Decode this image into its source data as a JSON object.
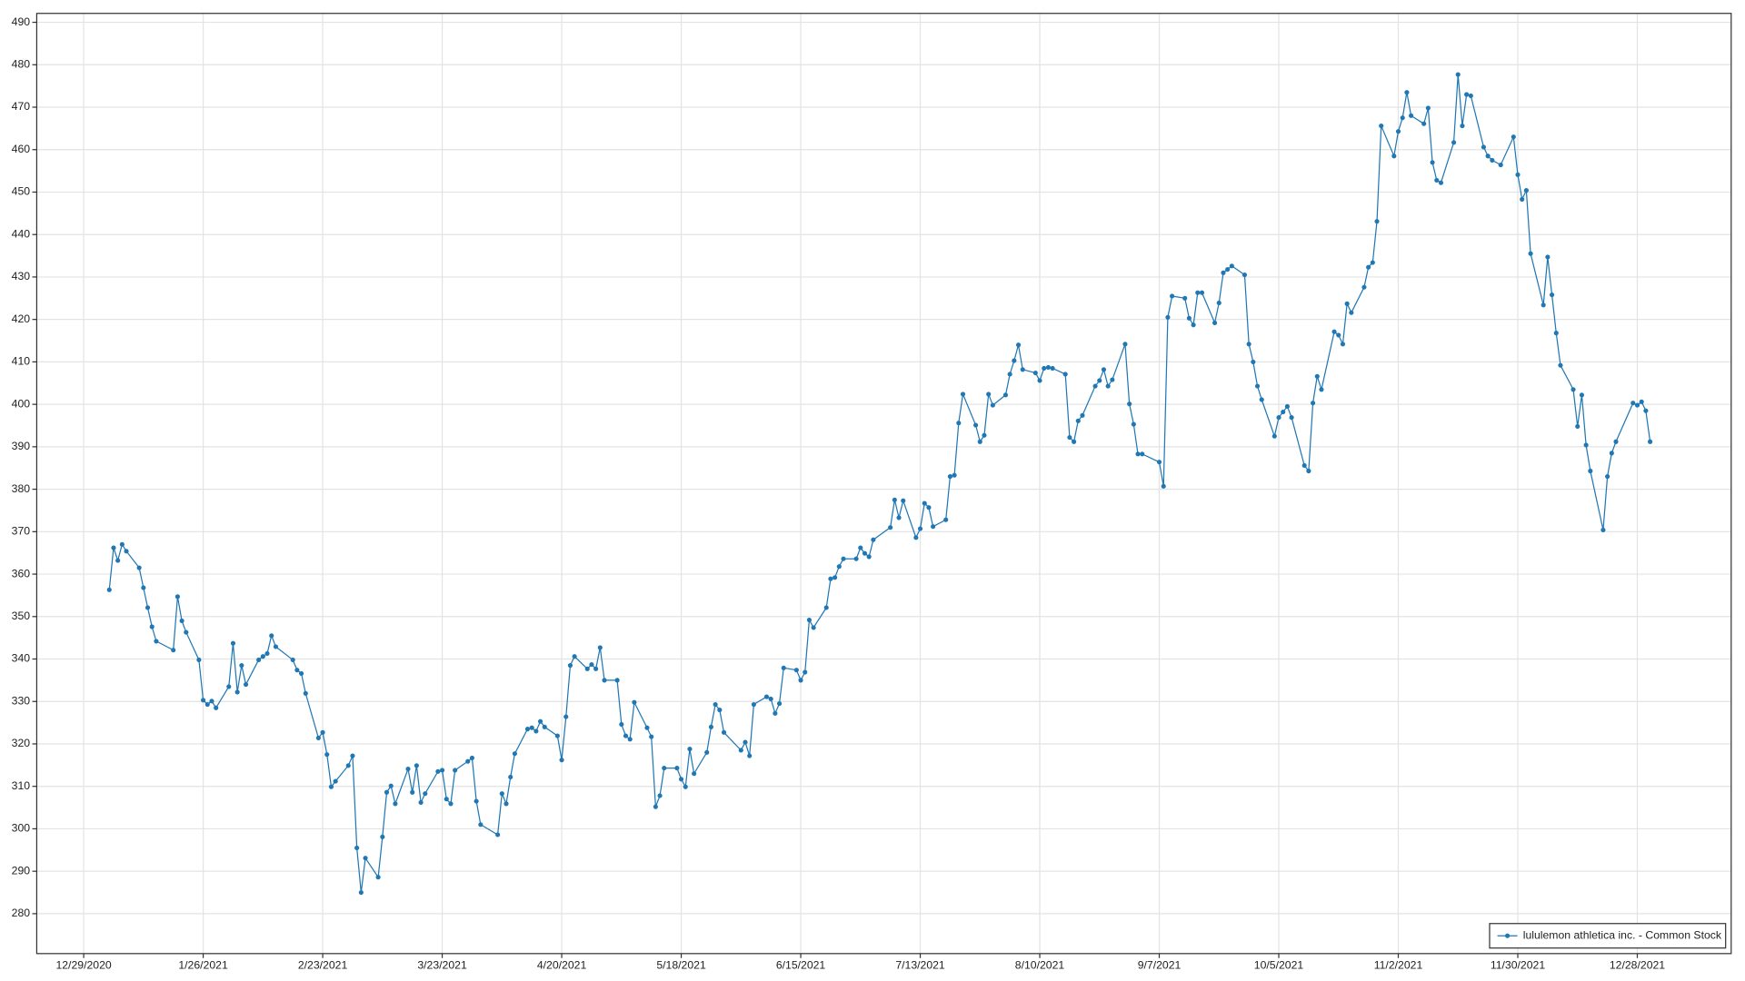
{
  "chart_data": {
    "type": "line",
    "x": [
      "2021-01-04",
      "2021-01-05",
      "2021-01-06",
      "2021-01-07",
      "2021-01-08",
      "2021-01-11",
      "2021-01-12",
      "2021-01-13",
      "2021-01-14",
      "2021-01-15",
      "2021-01-19",
      "2021-01-20",
      "2021-01-21",
      "2021-01-22",
      "2021-01-25",
      "2021-01-26",
      "2021-01-27",
      "2021-01-28",
      "2021-01-29",
      "2021-02-01",
      "2021-02-02",
      "2021-02-03",
      "2021-02-04",
      "2021-02-05",
      "2021-02-08",
      "2021-02-09",
      "2021-02-10",
      "2021-02-11",
      "2021-02-12",
      "2021-02-16",
      "2021-02-17",
      "2021-02-18",
      "2021-02-19",
      "2021-02-22",
      "2021-02-23",
      "2021-02-24",
      "2021-02-25",
      "2021-02-26",
      "2021-03-01",
      "2021-03-02",
      "2021-03-03",
      "2021-03-04",
      "2021-03-05",
      "2021-03-08",
      "2021-03-09",
      "2021-03-10",
      "2021-03-11",
      "2021-03-12",
      "2021-03-15",
      "2021-03-16",
      "2021-03-17",
      "2021-03-18",
      "2021-03-19",
      "2021-03-22",
      "2021-03-23",
      "2021-03-24",
      "2021-03-25",
      "2021-03-26",
      "2021-03-29",
      "2021-03-30",
      "2021-03-31",
      "2021-04-01",
      "2021-04-05",
      "2021-04-06",
      "2021-04-07",
      "2021-04-08",
      "2021-04-09",
      "2021-04-12",
      "2021-04-13",
      "2021-04-14",
      "2021-04-15",
      "2021-04-16",
      "2021-04-19",
      "2021-04-20",
      "2021-04-21",
      "2021-04-22",
      "2021-04-23",
      "2021-04-26",
      "2021-04-27",
      "2021-04-28",
      "2021-04-29",
      "2021-04-30",
      "2021-05-03",
      "2021-05-04",
      "2021-05-05",
      "2021-05-06",
      "2021-05-07",
      "2021-05-10",
      "2021-05-11",
      "2021-05-12",
      "2021-05-13",
      "2021-05-14",
      "2021-05-17",
      "2021-05-18",
      "2021-05-19",
      "2021-05-20",
      "2021-05-21",
      "2021-05-24",
      "2021-05-25",
      "2021-05-26",
      "2021-05-27",
      "2021-05-28",
      "2021-06-01",
      "2021-06-02",
      "2021-06-03",
      "2021-06-04",
      "2021-06-07",
      "2021-06-08",
      "2021-06-09",
      "2021-06-10",
      "2021-06-11",
      "2021-06-14",
      "2021-06-15",
      "2021-06-16",
      "2021-06-17",
      "2021-06-18",
      "2021-06-21",
      "2021-06-22",
      "2021-06-23",
      "2021-06-24",
      "2021-06-25",
      "2021-06-28",
      "2021-06-29",
      "2021-06-30",
      "2021-07-01",
      "2021-07-02",
      "2021-07-06",
      "2021-07-07",
      "2021-07-08",
      "2021-07-09",
      "2021-07-12",
      "2021-07-13",
      "2021-07-14",
      "2021-07-15",
      "2021-07-16",
      "2021-07-19",
      "2021-07-20",
      "2021-07-21",
      "2021-07-22",
      "2021-07-23",
      "2021-07-26",
      "2021-07-27",
      "2021-07-28",
      "2021-07-29",
      "2021-07-30",
      "2021-08-02",
      "2021-08-03",
      "2021-08-04",
      "2021-08-05",
      "2021-08-06",
      "2021-08-09",
      "2021-08-10",
      "2021-08-11",
      "2021-08-12",
      "2021-08-13",
      "2021-08-16",
      "2021-08-17",
      "2021-08-18",
      "2021-08-19",
      "2021-08-20",
      "2021-08-23",
      "2021-08-24",
      "2021-08-25",
      "2021-08-26",
      "2021-08-27",
      "2021-08-30",
      "2021-08-31",
      "2021-09-01",
      "2021-09-02",
      "2021-09-03",
      "2021-09-07",
      "2021-09-08",
      "2021-09-09",
      "2021-09-10",
      "2021-09-13",
      "2021-09-14",
      "2021-09-15",
      "2021-09-16",
      "2021-09-17",
      "2021-09-20",
      "2021-09-21",
      "2021-09-22",
      "2021-09-23",
      "2021-09-24",
      "2021-09-27",
      "2021-09-28",
      "2021-09-29",
      "2021-09-30",
      "2021-10-01",
      "2021-10-04",
      "2021-10-05",
      "2021-10-06",
      "2021-10-07",
      "2021-10-08",
      "2021-10-11",
      "2021-10-12",
      "2021-10-13",
      "2021-10-14",
      "2021-10-15",
      "2021-10-18",
      "2021-10-19",
      "2021-10-20",
      "2021-10-21",
      "2021-10-22",
      "2021-10-25",
      "2021-10-26",
      "2021-10-27",
      "2021-10-28",
      "2021-10-29",
      "2021-11-01",
      "2021-11-02",
      "2021-11-03",
      "2021-11-04",
      "2021-11-05",
      "2021-11-08",
      "2021-11-09",
      "2021-11-10",
      "2021-11-11",
      "2021-11-12",
      "2021-11-15",
      "2021-11-16",
      "2021-11-17",
      "2021-11-18",
      "2021-11-19",
      "2021-11-22",
      "2021-11-23",
      "2021-11-24",
      "2021-11-26",
      "2021-11-29",
      "2021-11-30",
      "2021-12-01",
      "2021-12-02",
      "2021-12-03",
      "2021-12-06",
      "2021-12-07",
      "2021-12-08",
      "2021-12-09",
      "2021-12-10",
      "2021-12-13",
      "2021-12-14",
      "2021-12-15",
      "2021-12-16",
      "2021-12-17",
      "2021-12-20",
      "2021-12-21",
      "2021-12-22",
      "2021-12-23",
      "2021-12-27",
      "2021-12-28",
      "2021-12-29",
      "2021-12-30",
      "2021-12-31"
    ],
    "series": [
      {
        "name": "lululemon athletica inc. - Common Stock",
        "color": "#1f77b4",
        "values": [
          356.3,
          366.2,
          363.2,
          367.0,
          365.4,
          361.5,
          356.8,
          352.1,
          347.6,
          344.2,
          342.1,
          354.7,
          349.0,
          346.3,
          339.8,
          330.3,
          329.3,
          330.1,
          328.5,
          333.5,
          343.7,
          332.2,
          338.5,
          334.0,
          339.8,
          340.6,
          341.3,
          345.5,
          342.9,
          339.8,
          337.4,
          336.6,
          331.9,
          321.4,
          322.7,
          317.5,
          309.9,
          311.2,
          314.9,
          317.2,
          295.5,
          285.0,
          293.1,
          288.6,
          298.1,
          308.6,
          310.1,
          305.9,
          314.1,
          308.6,
          314.9,
          306.2,
          308.3,
          313.5,
          313.8,
          307.0,
          305.9,
          313.8,
          315.9,
          316.7,
          306.5,
          301.0,
          298.6,
          308.3,
          305.9,
          312.2,
          317.7,
          323.5,
          323.8,
          323.0,
          325.3,
          324.0,
          321.9,
          316.2,
          326.4,
          338.5,
          340.6,
          337.7,
          338.7,
          337.7,
          342.7,
          335.0,
          335.0,
          324.6,
          321.9,
          321.1,
          329.8,
          323.8,
          321.7,
          305.2,
          307.8,
          314.3,
          314.3,
          311.7,
          309.9,
          318.8,
          313.0,
          318.0,
          324.0,
          329.3,
          328.0,
          322.7,
          318.5,
          320.4,
          317.2,
          329.3,
          331.1,
          330.6,
          327.2,
          329.5,
          337.9,
          337.4,
          335.0,
          336.9,
          349.2,
          347.4,
          352.1,
          358.9,
          359.2,
          361.8,
          363.6,
          363.6,
          366.2,
          364.9,
          364.1,
          368.1,
          371.0,
          377.5,
          373.3,
          377.3,
          368.6,
          370.7,
          376.7,
          375.7,
          371.2,
          372.8,
          383.0,
          383.3,
          395.6,
          402.4,
          395.1,
          391.2,
          392.7,
          402.4,
          399.8,
          402.2,
          407.1,
          410.3,
          414.0,
          408.2,
          407.4,
          405.6,
          408.5,
          408.7,
          408.5,
          407.1,
          392.2,
          391.2,
          396.1,
          397.4,
          404.3,
          405.6,
          408.2,
          404.3,
          405.8,
          414.2,
          400.1,
          395.3,
          388.3,
          388.3,
          386.4,
          380.7,
          420.5,
          425.5,
          425.0,
          420.3,
          418.7,
          426.3,
          426.3,
          419.2,
          423.9,
          431.0,
          431.8,
          432.6,
          430.5,
          414.2,
          410.0,
          404.3,
          401.1,
          392.5,
          396.9,
          398.2,
          399.5,
          396.9,
          385.6,
          384.3,
          400.3,
          406.6,
          403.5,
          417.1,
          416.3,
          414.2,
          423.7,
          421.6,
          427.6,
          432.3,
          433.4,
          443.1,
          465.6,
          458.5,
          464.3,
          467.5,
          473.5,
          468.0,
          466.1,
          469.8,
          457.0,
          452.8,
          452.2,
          461.7,
          477.7,
          465.6,
          473.0,
          472.7,
          460.6,
          458.5,
          457.5,
          456.4,
          463.0,
          454.1,
          448.3,
          450.4,
          435.5,
          423.4,
          434.7,
          425.8,
          416.8,
          409.2,
          403.5,
          394.8,
          402.2,
          390.4,
          384.3,
          370.4,
          383.0,
          388.5,
          391.2,
          400.3,
          399.8,
          400.6,
          398.5,
          391.2
        ]
      }
    ],
    "xlim": [
      "2020-12-18",
      "2022-01-19"
    ],
    "xticks": [
      {
        "value": "2020-12-29",
        "label": "12/29/2020"
      },
      {
        "value": "2021-01-26",
        "label": "1/26/2021"
      },
      {
        "value": "2021-02-23",
        "label": "2/23/2021"
      },
      {
        "value": "2021-03-23",
        "label": "3/23/2021"
      },
      {
        "value": "2021-04-20",
        "label": "4/20/2021"
      },
      {
        "value": "2021-05-18",
        "label": "5/18/2021"
      },
      {
        "value": "2021-06-15",
        "label": "6/15/2021"
      },
      {
        "value": "2021-07-13",
        "label": "7/13/2021"
      },
      {
        "value": "2021-08-10",
        "label": "8/10/2021"
      },
      {
        "value": "2021-09-07",
        "label": "9/7/2021"
      },
      {
        "value": "2021-10-05",
        "label": "10/5/2021"
      },
      {
        "value": "2021-11-02",
        "label": "11/2/2021"
      },
      {
        "value": "2021-11-30",
        "label": "11/30/2021"
      },
      {
        "value": "2021-12-28",
        "label": "12/28/2021"
      }
    ],
    "ylim": [
      270.6,
      492.1
    ],
    "yticks": [
      280,
      290,
      300,
      310,
      320,
      330,
      340,
      350,
      360,
      370,
      380,
      390,
      400,
      410,
      420,
      430,
      440,
      450,
      460,
      470,
      480,
      490
    ],
    "grid": true,
    "legend_position": "lower right"
  }
}
